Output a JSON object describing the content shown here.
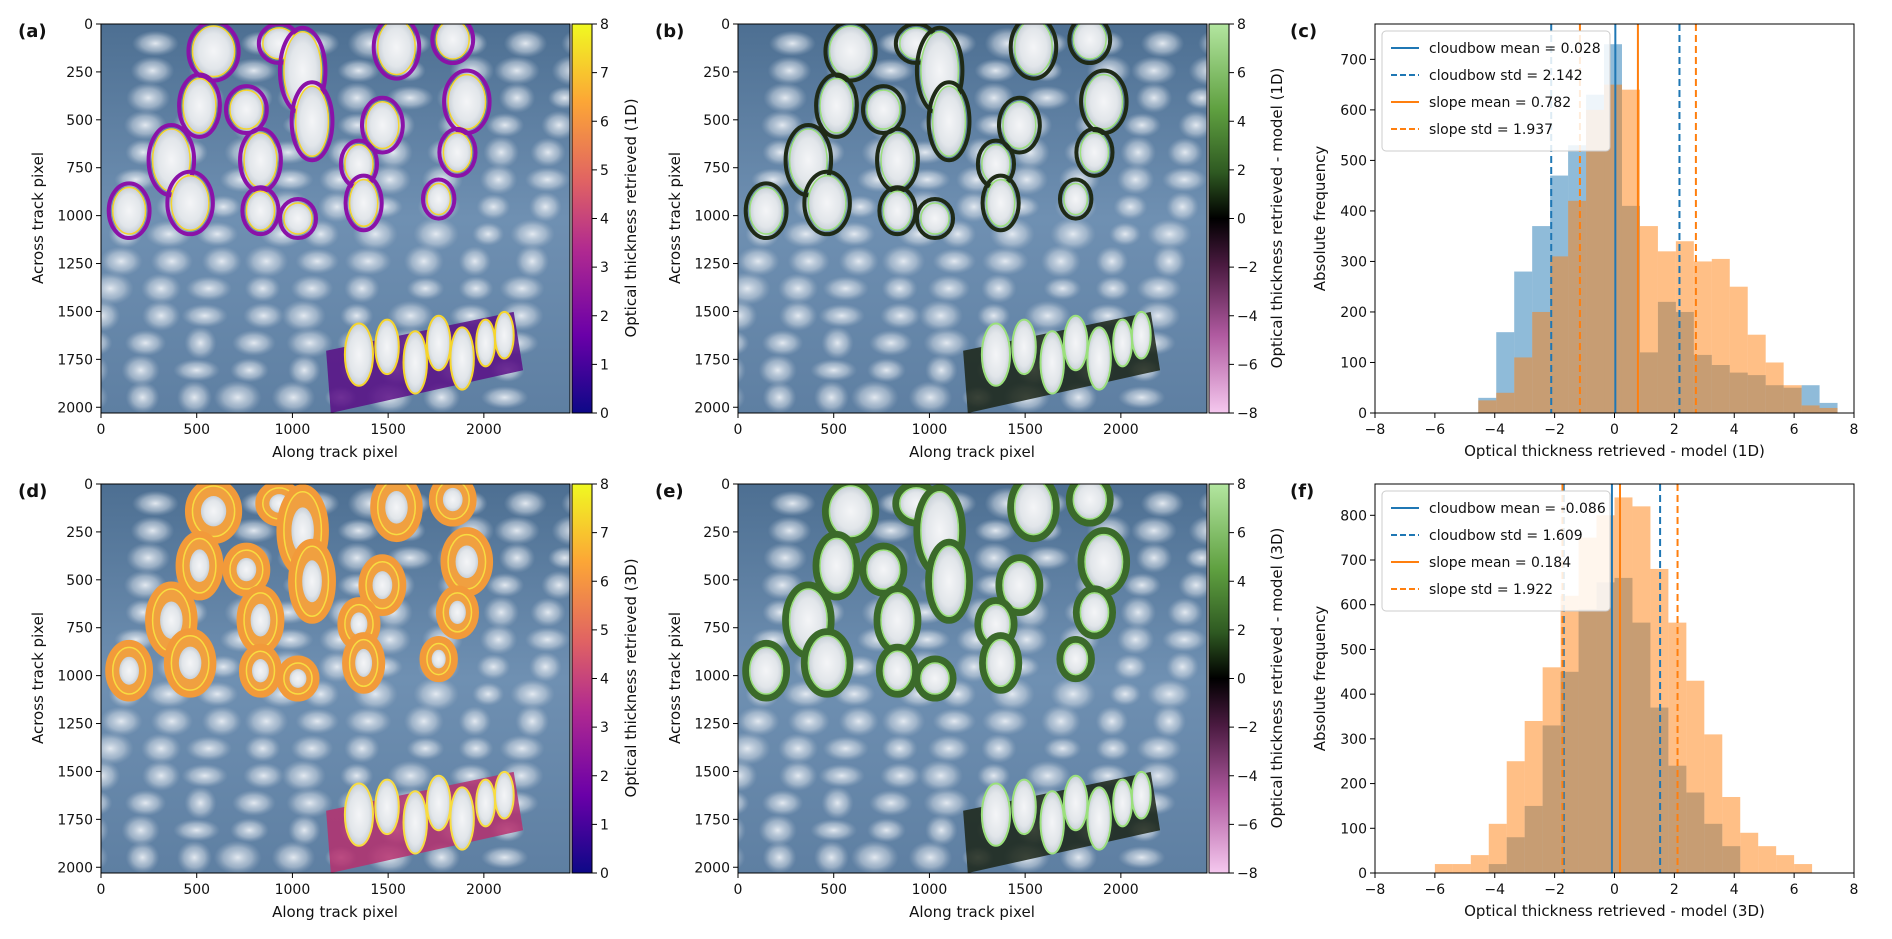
{
  "panels": {
    "a": {
      "label": "(a)",
      "xlabel": "Along track pixel",
      "ylabel": "Across track pixel",
      "cbar_label": "Optical thickness retrieved (1D)"
    },
    "b": {
      "label": "(b)",
      "xlabel": "Along track pixel",
      "ylabel": "Across track pixel",
      "cbar_label": "Optical thickness retrieved - model (1D)"
    },
    "c": {
      "label": "(c)"
    },
    "d": {
      "label": "(d)",
      "xlabel": "Along track pixel",
      "ylabel": "Across track pixel",
      "cbar_label": "Optical thickness retrieved (3D)"
    },
    "e": {
      "label": "(e)",
      "xlabel": "Along track pixel",
      "ylabel": "Across track pixel",
      "cbar_label": "Optical thickness retrieved - model (3D)"
    },
    "f": {
      "label": "(f)"
    }
  },
  "map_axes": {
    "x_ticks": [
      "0",
      "500",
      "1000",
      "1500",
      "2000"
    ],
    "x_tick_values": [
      0,
      500,
      1000,
      1500,
      2000
    ],
    "x_range": [
      0,
      2450
    ],
    "y_ticks": [
      "0",
      "250",
      "500",
      "750",
      "1000",
      "1250",
      "1500",
      "1750",
      "2000"
    ],
    "y_tick_values": [
      0,
      250,
      500,
      750,
      1000,
      1250,
      1500,
      1750,
      2000
    ],
    "y_range": [
      0,
      2030
    ],
    "cbar_abs_ticks": [
      "0",
      "1",
      "2",
      "3",
      "4",
      "5",
      "6",
      "7",
      "8"
    ],
    "cbar_diff_ticks": [
      "8",
      "6",
      "4",
      "2",
      "0",
      "−2",
      "−4",
      "−6",
      "−8"
    ],
    "abs_colormap": [
      "#0d0887",
      "#6a00a8",
      "#b12a90",
      "#e16462",
      "#fca636",
      "#f0f921"
    ],
    "diff_colormap": [
      "#b3e6a0",
      "#5fa040",
      "#2f5a22",
      "#000000",
      "#4a1a40",
      "#b05aa0",
      "#f5c8ee"
    ]
  },
  "chart_data": [
    {
      "id": "c",
      "type": "histogram",
      "xlabel": "Optical thickness retrieved - model (1D)",
      "ylabel": "Absolute frequency",
      "xlim": [
        -8,
        8
      ],
      "ylim": [
        0,
        770
      ],
      "x_ticks": [
        -8,
        -6,
        -4,
        -2,
        0,
        2,
        4,
        6,
        8
      ],
      "x_tick_labels": [
        "−8",
        "−6",
        "−4",
        "−2",
        "0",
        "2",
        "4",
        "6",
        "8"
      ],
      "y_ticks": [
        0,
        100,
        200,
        300,
        400,
        500,
        600,
        700
      ],
      "legend_position": "top-left",
      "series": [
        {
          "name": "cloudbow",
          "color": "#1f77b4",
          "bin_edges": [
            -4.55,
            -3.95,
            -3.35,
            -2.75,
            -2.15,
            -1.55,
            -0.95,
            -0.35,
            0.25,
            0.85,
            1.45,
            2.05,
            2.65,
            3.25,
            3.85,
            4.45,
            5.05,
            5.65,
            6.25,
            6.85,
            7.45
          ],
          "values": [
            30,
            160,
            280,
            370,
            470,
            530,
            630,
            730,
            410,
            120,
            220,
            200,
            115,
            95,
            80,
            75,
            55,
            50,
            55,
            20
          ]
        },
        {
          "name": "slope",
          "color": "#ff7f0e",
          "bin_edges": [
            -4.55,
            -3.95,
            -3.35,
            -2.75,
            -2.15,
            -1.55,
            -0.95,
            -0.35,
            0.25,
            0.85,
            1.45,
            2.05,
            2.65,
            3.25,
            3.85,
            4.45,
            5.05,
            5.65,
            6.25,
            6.85,
            7.45
          ],
          "values": [
            25,
            40,
            110,
            200,
            310,
            420,
            600,
            650,
            640,
            370,
            320,
            340,
            300,
            305,
            250,
            155,
            100,
            55,
            15,
            10
          ]
        }
      ],
      "lines": [
        {
          "name": "cloudbow mean = 0.028",
          "x": 0.028,
          "color": "#1f77b4",
          "style": "solid"
        },
        {
          "name": "cloudbow std = 2.142",
          "x": [
            -2.114,
            2.17
          ],
          "color": "#1f77b4",
          "style": "dashed"
        },
        {
          "name": "slope mean = 0.782",
          "x": 0.782,
          "color": "#ff7f0e",
          "style": "solid"
        },
        {
          "name": "slope std = 1.937",
          "x": [
            -1.155,
            2.719
          ],
          "color": "#ff7f0e",
          "style": "dashed"
        }
      ]
    },
    {
      "id": "f",
      "type": "histogram",
      "xlabel": "Optical thickness retrieved - model (3D)",
      "ylabel": "Absolute frequency",
      "xlim": [
        -8,
        8
      ],
      "ylim": [
        0,
        870
      ],
      "x_ticks": [
        -8,
        -6,
        -4,
        -2,
        0,
        2,
        4,
        6,
        8
      ],
      "x_tick_labels": [
        "−8",
        "−6",
        "−4",
        "−2",
        "0",
        "2",
        "4",
        "6",
        "8"
      ],
      "y_ticks": [
        0,
        100,
        200,
        300,
        400,
        500,
        600,
        700,
        800
      ],
      "legend_position": "top-left",
      "series": [
        {
          "name": "cloudbow",
          "color": "#1f77b4",
          "bin_edges": [
            -6.0,
            -5.4,
            -4.8,
            -4.2,
            -3.6,
            -3.0,
            -2.4,
            -1.8,
            -1.2,
            -0.6,
            0.0,
            0.6,
            1.2,
            1.8,
            2.4,
            3.0,
            3.6,
            4.2,
            4.8,
            5.4,
            6.0,
            6.6,
            7.2
          ],
          "values": [
            0,
            0,
            0,
            20,
            80,
            150,
            330,
            450,
            590,
            650,
            660,
            560,
            370,
            240,
            180,
            110,
            60,
            0,
            0,
            0,
            0,
            0
          ]
        },
        {
          "name": "slope",
          "color": "#ff7f0e",
          "bin_edges": [
            -6.0,
            -5.4,
            -4.8,
            -4.2,
            -3.6,
            -3.0,
            -2.4,
            -1.8,
            -1.2,
            -0.6,
            0.0,
            0.6,
            1.2,
            1.8,
            2.4,
            3.0,
            3.6,
            4.2,
            4.8,
            5.4,
            6.0,
            6.6,
            7.2
          ],
          "values": [
            20,
            20,
            40,
            110,
            250,
            340,
            460,
            620,
            750,
            800,
            840,
            820,
            680,
            560,
            430,
            310,
            170,
            90,
            60,
            40,
            20,
            0
          ]
        }
      ],
      "lines": [
        {
          "name": "cloudbow mean = -0.086",
          "x": -0.086,
          "color": "#1f77b4",
          "style": "solid"
        },
        {
          "name": "cloudbow std = 1.609",
          "x": [
            -1.695,
            1.523
          ],
          "color": "#1f77b4",
          "style": "dashed"
        },
        {
          "name": "slope mean = 0.184",
          "x": 0.184,
          "color": "#ff7f0e",
          "style": "solid"
        },
        {
          "name": "slope std = 1.922",
          "x": [
            -1.738,
            2.106
          ],
          "color": "#ff7f0e",
          "style": "dashed"
        }
      ]
    }
  ]
}
